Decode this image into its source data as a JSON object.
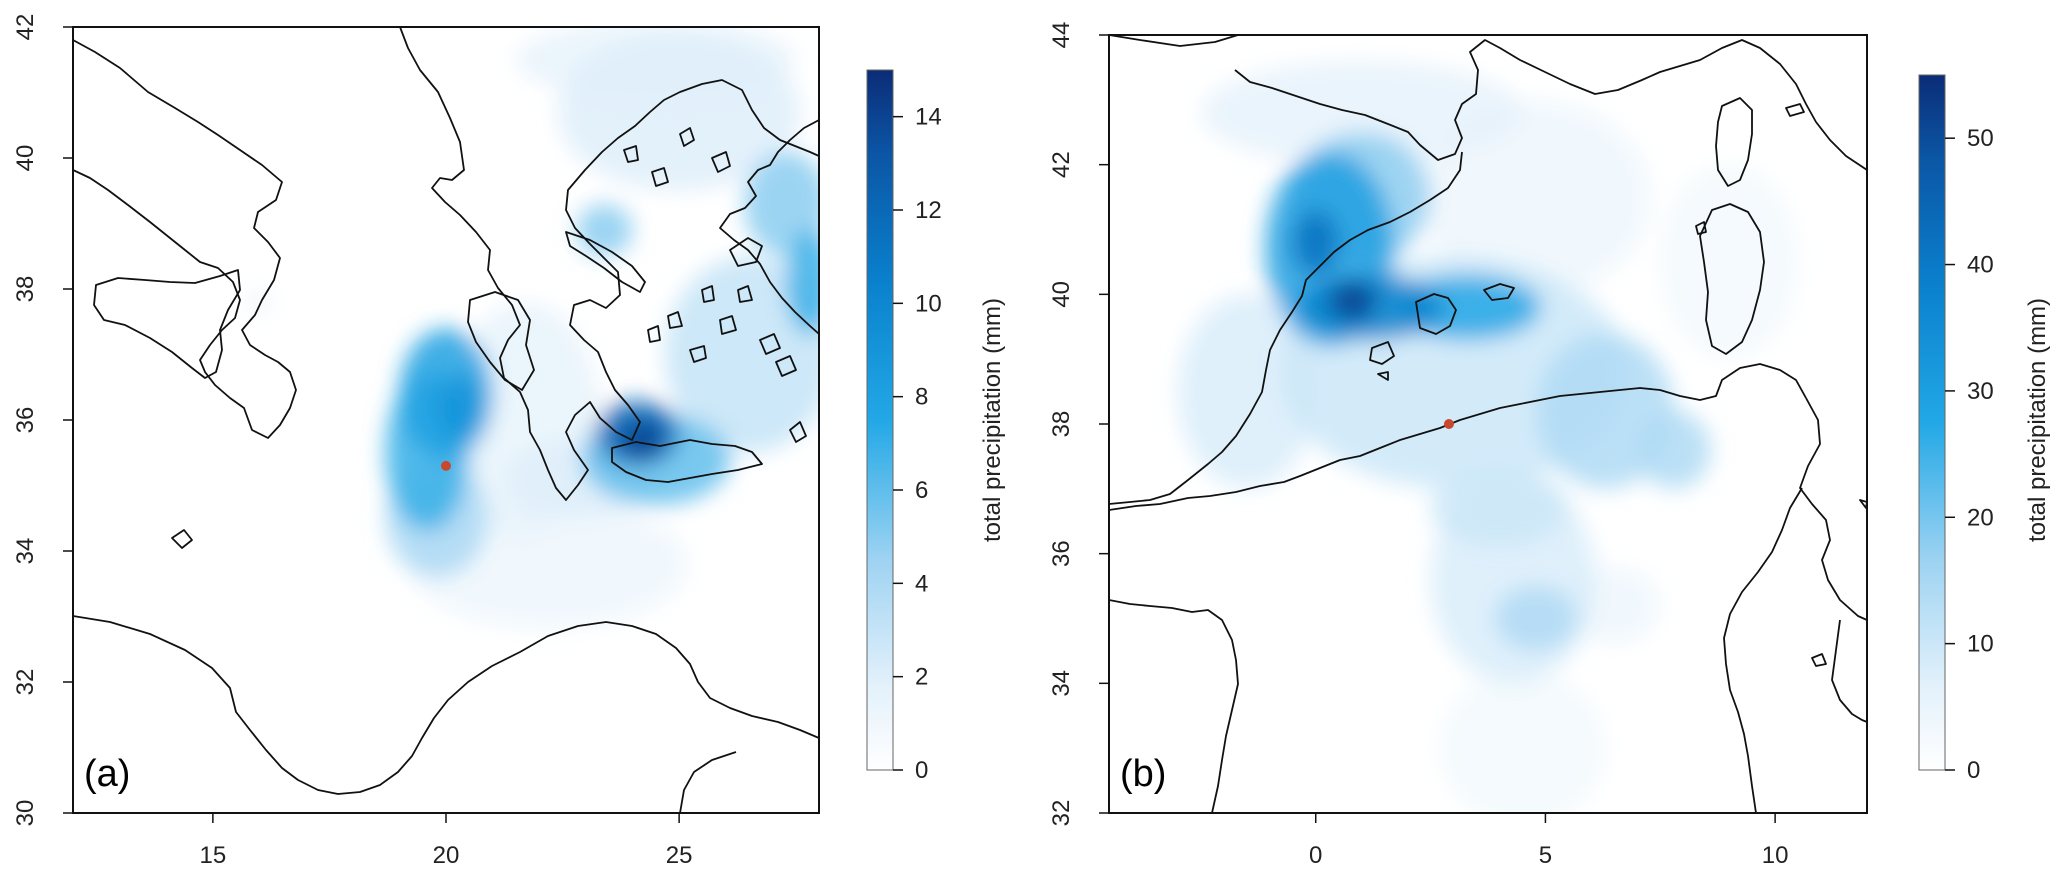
{
  "chart_data": [
    {
      "type": "heatmap",
      "panel_label": "(a)",
      "xlim": [
        12,
        28
      ],
      "ylim": [
        30,
        42
      ],
      "xticks": [
        15,
        20,
        25
      ],
      "yticks": [
        30,
        32,
        34,
        36,
        38,
        40,
        42
      ],
      "colorbar": {
        "label": "total precipitation (mm)",
        "range": [
          0,
          15
        ],
        "ticks": [
          0,
          2,
          4,
          6,
          8,
          10,
          12,
          14
        ]
      },
      "marker": {
        "lon": 20.0,
        "lat": 35.3,
        "color": "#c8482e"
      },
      "precip_cells": [
        {
          "lon": 20.0,
          "lat": 36.4,
          "value": 8,
          "rx": 1.0,
          "ry": 1.0
        },
        {
          "lon": 19.6,
          "lat": 35.5,
          "value": 7,
          "rx": 0.9,
          "ry": 1.2
        },
        {
          "lon": 20.3,
          "lat": 36.2,
          "value": 9,
          "rx": 0.5,
          "ry": 0.5
        },
        {
          "lon": 19.8,
          "lat": 34.5,
          "value": 4,
          "rx": 1.1,
          "ry": 0.9
        },
        {
          "lon": 24.1,
          "lat": 35.8,
          "value": 12,
          "rx": 0.9,
          "ry": 0.5
        },
        {
          "lon": 24.2,
          "lat": 35.7,
          "value": 14,
          "rx": 0.45,
          "ry": 0.3
        },
        {
          "lon": 24.5,
          "lat": 35.4,
          "value": 6,
          "rx": 1.6,
          "ry": 0.7
        },
        {
          "lon": 22.9,
          "lat": 35.1,
          "value": 2,
          "rx": 1.6,
          "ry": 0.6
        },
        {
          "lon": 27.3,
          "lat": 39.3,
          "value": 5,
          "rx": 0.9,
          "ry": 0.8
        },
        {
          "lon": 27.8,
          "lat": 38.1,
          "value": 7,
          "rx": 0.5,
          "ry": 0.8
        },
        {
          "lon": 23.4,
          "lat": 38.9,
          "value": 5,
          "rx": 0.6,
          "ry": 0.4
        },
        {
          "lon": 26.5,
          "lat": 37.0,
          "value": 3,
          "rx": 1.8,
          "ry": 1.5
        },
        {
          "lon": 25.0,
          "lat": 40.7,
          "value": 2,
          "rx": 2.6,
          "ry": 1.2
        },
        {
          "lon": 21.7,
          "lat": 36.0,
          "value": 1.5,
          "rx": 1.6,
          "ry": 1.8
        },
        {
          "lon": 22.2,
          "lat": 33.8,
          "value": 1,
          "rx": 3.0,
          "ry": 1.0
        },
        {
          "lon": 24.5,
          "lat": 41.5,
          "value": 1.5,
          "rx": 3.0,
          "ry": 0.6
        },
        {
          "lon": 16.0,
          "lat": 37.8,
          "value": 1,
          "rx": 0.3,
          "ry": 0.2
        }
      ]
    },
    {
      "type": "heatmap",
      "panel_label": "(b)",
      "xlim": [
        -4.5,
        12
      ],
      "ylim": [
        32,
        44
      ],
      "xticks": [
        0,
        5,
        10
      ],
      "yticks": [
        32,
        34,
        36,
        38,
        40,
        42,
        44
      ],
      "colorbar": {
        "label": "total precipitation (mm)",
        "range": [
          0,
          55
        ],
        "ticks": [
          0,
          10,
          20,
          30,
          40,
          50
        ]
      },
      "marker": {
        "lon": 2.9,
        "lat": 38.0,
        "color": "#c8482e"
      },
      "precip_cells": [
        {
          "lon": 0.3,
          "lat": 40.7,
          "value": 30,
          "rx": 1.4,
          "ry": 1.5
        },
        {
          "lon": 0.0,
          "lat": 40.8,
          "value": 42,
          "rx": 0.5,
          "ry": 0.5
        },
        {
          "lon": 1.2,
          "lat": 39.8,
          "value": 38,
          "rx": 1.6,
          "ry": 0.5
        },
        {
          "lon": 0.8,
          "lat": 39.9,
          "value": 52,
          "rx": 0.5,
          "ry": 0.3
        },
        {
          "lon": 3.3,
          "lat": 39.8,
          "value": 28,
          "rx": 1.6,
          "ry": 0.5
        },
        {
          "lon": 1.0,
          "lat": 41.5,
          "value": 18,
          "rx": 1.5,
          "ry": 1.0
        },
        {
          "lon": 3.0,
          "lat": 38.8,
          "value": 10,
          "rx": 3.8,
          "ry": 1.8
        },
        {
          "lon": 6.3,
          "lat": 38.2,
          "value": 14,
          "rx": 1.5,
          "ry": 1.2
        },
        {
          "lon": 7.8,
          "lat": 37.6,
          "value": 14,
          "rx": 0.8,
          "ry": 0.6
        },
        {
          "lon": -1.5,
          "lat": 38.5,
          "value": 8,
          "rx": 1.5,
          "ry": 1.5
        },
        {
          "lon": 4.8,
          "lat": 35.0,
          "value": 14,
          "rx": 0.9,
          "ry": 0.5
        },
        {
          "lon": 4.3,
          "lat": 35.6,
          "value": 8,
          "rx": 1.8,
          "ry": 1.6
        },
        {
          "lon": 4.0,
          "lat": 36.7,
          "value": 10,
          "rx": 1.5,
          "ry": 0.6
        },
        {
          "lon": 1.0,
          "lat": 42.8,
          "value": 6,
          "rx": 3.5,
          "ry": 0.8
        },
        {
          "lon": 4.8,
          "lat": 41.5,
          "value": 4,
          "rx": 2.5,
          "ry": 1.5
        },
        {
          "lon": 9.0,
          "lat": 40.5,
          "value": 3,
          "rx": 1.5,
          "ry": 1.5
        },
        {
          "lon": 4.5,
          "lat": 33.0,
          "value": 3,
          "rx": 1.8,
          "ry": 1.2
        },
        {
          "lon": 6.5,
          "lat": 35.2,
          "value": 4,
          "rx": 1.0,
          "ry": 0.6
        }
      ]
    }
  ]
}
